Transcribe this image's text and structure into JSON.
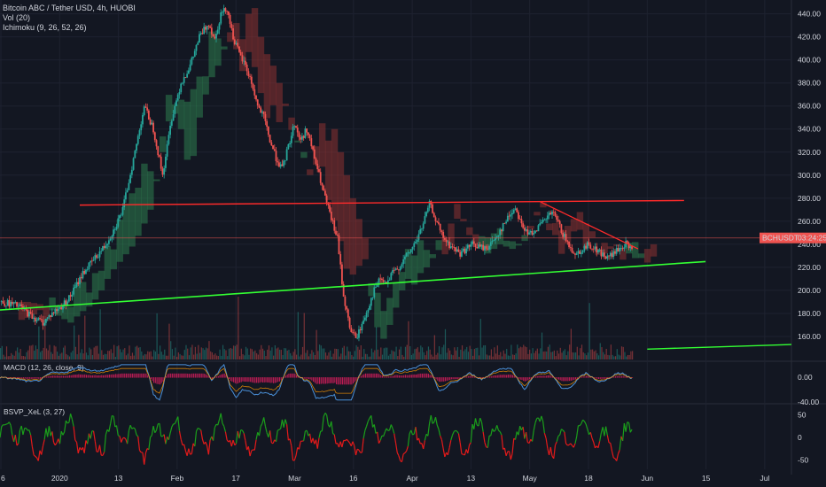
{
  "header": {
    "title": "Bitcoin ABC / Tether USD, 4h, HUOBI",
    "vol": "Vol (20)",
    "ichimoku": "Ichimoku (9, 26, 52, 26)"
  },
  "price_badge": {
    "symbol": "BCHUSDT",
    "countdown": "03:24:25",
    "color": "#ef5350"
  },
  "macd_label": "MACD (12, 26, close, 9)",
  "bsvp_label": "BSVP_XeL (3, 27)",
  "colors": {
    "background": "#131722",
    "grid": "#1e2230",
    "up": "#26a69a",
    "down": "#ef5350",
    "trend_line": "#ff2a2a",
    "support_line": "#33ff33",
    "kumo_bull": "#2e7d4f",
    "kumo_bear": "#8c3232",
    "macd": "#4a90d9",
    "signal": "#ff9800",
    "hist": "#e91e63",
    "bsvp_up": "#1b9e1b",
    "bsvp_down": "#e31a1a"
  },
  "chart_data": {
    "type": "candlestick",
    "price_axis": {
      "ticks": [
        "440.00",
        "420.00",
        "400.00",
        "380.00",
        "360.00",
        "340.00",
        "320.00",
        "300.00",
        "280.00",
        "260.00",
        "240.00",
        "220.00",
        "200.00",
        "180.00",
        "160.00"
      ],
      "range": [
        140,
        452
      ]
    },
    "time_axis": {
      "labels": [
        "6",
        "2020",
        "13",
        "Feb",
        "17",
        "Mar",
        "16",
        "Apr",
        "13",
        "May",
        "18",
        "Jun",
        "15",
        "Jul"
      ]
    },
    "price_path": [
      [
        0,
        190
      ],
      [
        4,
        188
      ],
      [
        7,
        185
      ],
      [
        10,
        178
      ],
      [
        14,
        172
      ],
      [
        17,
        180
      ],
      [
        20,
        186
      ],
      [
        23,
        195
      ],
      [
        27,
        215
      ],
      [
        31,
        228
      ],
      [
        34,
        238
      ],
      [
        37,
        252
      ],
      [
        40,
        270
      ],
      [
        44,
        320
      ],
      [
        47,
        360
      ],
      [
        50,
        340
      ],
      [
        53,
        300
      ],
      [
        56,
        350
      ],
      [
        59,
        380
      ],
      [
        62,
        395
      ],
      [
        65,
        420
      ],
      [
        68,
        432
      ],
      [
        70,
        418
      ],
      [
        72,
        440
      ],
      [
        74,
        445
      ],
      [
        76,
        420
      ],
      [
        78,
        405
      ],
      [
        80,
        395
      ],
      [
        82,
        380
      ],
      [
        84,
        360
      ],
      [
        86,
        350
      ],
      [
        88,
        330
      ],
      [
        90,
        315
      ],
      [
        92,
        305
      ],
      [
        94,
        325
      ],
      [
        96,
        345
      ],
      [
        98,
        330
      ],
      [
        100,
        340
      ],
      [
        102,
        320
      ],
      [
        104,
        300
      ],
      [
        106,
        280
      ],
      [
        108,
        262
      ],
      [
        110,
        245
      ],
      [
        112,
        195
      ],
      [
        114,
        168
      ],
      [
        116,
        158
      ],
      [
        118,
        170
      ],
      [
        120,
        185
      ],
      [
        122,
        200
      ],
      [
        124,
        210
      ],
      [
        126,
        205
      ],
      [
        128,
        215
      ],
      [
        130,
        220
      ],
      [
        132,
        228
      ],
      [
        134,
        235
      ],
      [
        136,
        245
      ],
      [
        138,
        258
      ],
      [
        140,
        275
      ],
      [
        142,
        262
      ],
      [
        144,
        248
      ],
      [
        146,
        240
      ],
      [
        148,
        236
      ],
      [
        150,
        232
      ],
      [
        152,
        236
      ],
      [
        154,
        240
      ],
      [
        156,
        238
      ],
      [
        158,
        236
      ],
      [
        160,
        240
      ],
      [
        162,
        248
      ],
      [
        164,
        256
      ],
      [
        166,
        265
      ],
      [
        168,
        272
      ],
      [
        170,
        258
      ],
      [
        172,
        248
      ],
      [
        174,
        252
      ],
      [
        176,
        256
      ],
      [
        178,
        262
      ],
      [
        180,
        268
      ],
      [
        182,
        258
      ],
      [
        184,
        246
      ],
      [
        186,
        236
      ],
      [
        188,
        232
      ],
      [
        190,
        236
      ],
      [
        192,
        240
      ],
      [
        194,
        236
      ],
      [
        196,
        232
      ],
      [
        198,
        228
      ],
      [
        200,
        232
      ],
      [
        202,
        236
      ],
      [
        204,
        240
      ],
      [
        206,
        236
      ]
    ],
    "resistance_line": {
      "x": [
        26,
        223
      ],
      "y": [
        274,
        278
      ]
    },
    "support_line": {
      "x": [
        0,
        230
      ],
      "y": [
        183,
        225
      ]
    },
    "support_line_extension": {
      "x": [
        211,
        258
      ],
      "y": [
        149,
        153
      ]
    },
    "descending_line": {
      "x": [
        176,
        208
      ],
      "y": [
        277,
        236
      ]
    },
    "horizontal_level": {
      "y": 245.5
    },
    "last_price": 245.5,
    "macd": {
      "zero_label": "0.00",
      "lower_label": "-40.00",
      "range": [
        -45,
        25
      ]
    },
    "bsvp": {
      "ticks": [
        "50",
        "0",
        "-50"
      ],
      "range": [
        -70,
        70
      ]
    }
  }
}
